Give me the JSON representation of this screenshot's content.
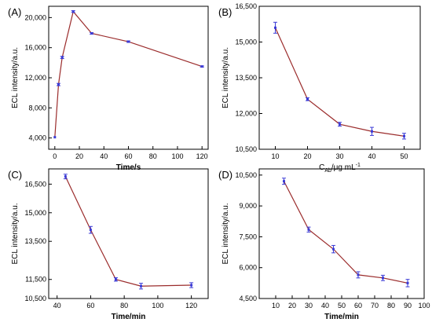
{
  "chart_data": [
    {
      "type": "line",
      "panel_label": "(A)",
      "xlabel": "Time/s",
      "xlabel_sub": "",
      "xlabel_sup": "",
      "ylabel": "ECL intensity/a.u.",
      "xlim": [
        -5,
        125
      ],
      "ylim": [
        2500,
        21500
      ],
      "xticks": [
        0,
        20,
        40,
        60,
        80,
        100,
        120
      ],
      "yticks": [
        4000,
        8000,
        12000,
        16000,
        20000
      ],
      "ytick_labels": [
        "4,000",
        "8,000",
        "12,000",
        "16,000",
        "20,000"
      ],
      "x": [
        0,
        3,
        6,
        15,
        30,
        60,
        120
      ],
      "y": [
        4100,
        11100,
        14700,
        20800,
        17900,
        16800,
        13500
      ],
      "err": [
        0,
        150,
        150,
        120,
        100,
        100,
        80
      ]
    },
    {
      "type": "line",
      "panel_label": "(B)",
      "xlabel": "C",
      "xlabel_sub": "Ab",
      "xlabel_sup": "-1",
      "xlabel_rest": "/μg mL",
      "ylabel": "ECL intensity/a.u.",
      "xlim": [
        5,
        55
      ],
      "ylim": [
        10500,
        16500
      ],
      "xticks": [
        10,
        20,
        30,
        40,
        50
      ],
      "yticks": [
        10500,
        12000,
        13500,
        15000,
        16500
      ],
      "ytick_labels": [
        "10,500",
        "12,000",
        "13,500",
        "15,000",
        "16,500"
      ],
      "x": [
        10,
        20,
        30,
        40,
        50
      ],
      "y": [
        15600,
        12600,
        11550,
        11250,
        11050
      ],
      "err": [
        230,
        60,
        80,
        170,
        120
      ]
    },
    {
      "type": "line",
      "panel_label": "(C)",
      "xlabel": "Time/min",
      "xlabel_sub": "",
      "xlabel_sup": "",
      "ylabel": "ECL intensity/a.u.",
      "xlim": [
        35,
        130
      ],
      "ylim": [
        10500,
        17300
      ],
      "xticks": [
        40,
        60,
        80,
        100,
        120
      ],
      "yticks": [
        10500,
        11500,
        13500,
        15000,
        16500
      ],
      "ytick_labels": [
        "10,500",
        "11,500",
        "13,500",
        "15,000",
        "16,500"
      ],
      "x": [
        45,
        60,
        75,
        90,
        120
      ],
      "y": [
        16900,
        14100,
        11500,
        11150,
        11200
      ],
      "err": [
        120,
        180,
        90,
        150,
        130
      ]
    },
    {
      "type": "line",
      "panel_label": "(D)",
      "xlabel": "Time/min",
      "xlabel_sub": "",
      "xlabel_sup": "",
      "ylabel": "ECL intensity/a.u.",
      "xlim": [
        0,
        100
      ],
      "ylim": [
        4500,
        10800
      ],
      "xticks": [
        10,
        20,
        30,
        40,
        50,
        60,
        70,
        80,
        90,
        100
      ],
      "yticks": [
        4500,
        6000,
        7500,
        9000,
        10500
      ],
      "ytick_labels": [
        "4,500",
        "6,000",
        "7,500",
        "9,000",
        "10,500"
      ],
      "x": [
        15,
        30,
        45,
        60,
        75,
        90
      ],
      "y": [
        10200,
        7850,
        6900,
        5650,
        5500,
        5250
      ],
      "err": [
        150,
        120,
        180,
        150,
        130,
        180
      ]
    }
  ]
}
